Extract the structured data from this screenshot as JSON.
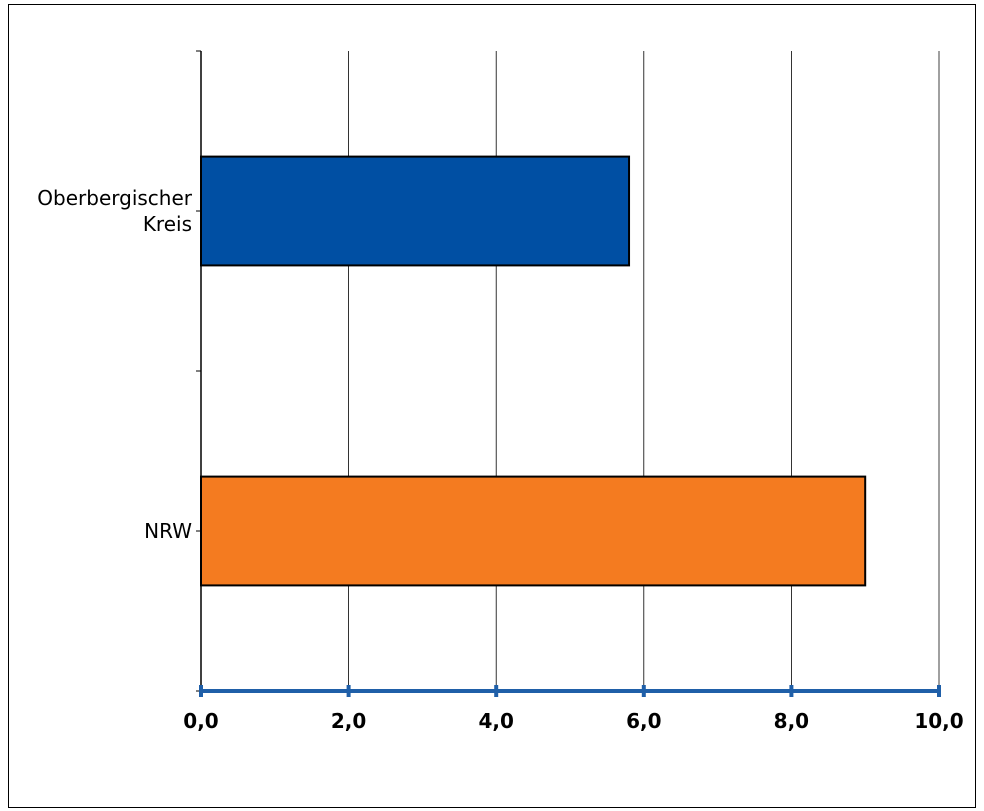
{
  "chart_data": {
    "type": "bar",
    "orientation": "horizontal",
    "categories": [
      [
        "Oberbergischer",
        "Kreis"
      ],
      [
        "NRW"
      ]
    ],
    "values": [
      5.8,
      9.0
    ],
    "bar_colors": [
      "#004fa3",
      "#f47b20"
    ],
    "xlim": [
      0,
      10
    ],
    "x_ticks": [
      0,
      2,
      4,
      6,
      8,
      10
    ],
    "x_tick_labels": [
      "0,0",
      "2,0",
      "4,0",
      "6,0",
      "8,0",
      "10,0"
    ],
    "axis_color": "#1f5fa8",
    "title": "",
    "xlabel": "",
    "ylabel": "",
    "grid": "vertical",
    "legend": "none"
  }
}
